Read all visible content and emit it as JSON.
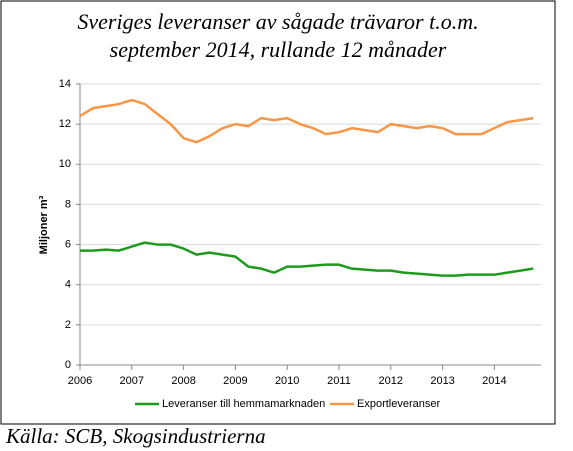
{
  "chart_data": {
    "type": "line",
    "title": [
      "Sveriges leveranser av sågade trävaror t.o.m.",
      "september 2014, rullande 12 månader"
    ],
    "y_label": "Miljoner m³",
    "source": "Källa: SCB, Skogsindustrierna",
    "x": [
      2006,
      2006.25,
      2006.5,
      2006.75,
      2007,
      2007.25,
      2007.5,
      2007.75,
      2008,
      2008.25,
      2008.5,
      2008.75,
      2009,
      2009.25,
      2009.5,
      2009.75,
      2010,
      2010.25,
      2010.5,
      2010.75,
      2011,
      2011.25,
      2011.5,
      2011.75,
      2012,
      2012.25,
      2012.5,
      2012.75,
      2013,
      2013.25,
      2013.5,
      2013.75,
      2014,
      2014.25,
      2014.5,
      2014.75
    ],
    "series": [
      {
        "name": "Leveranser till hemmamarknaden",
        "color": "#1e9a1e",
        "values": [
          5.7,
          5.7,
          5.75,
          5.7,
          5.9,
          6.1,
          6.0,
          6.0,
          5.8,
          5.5,
          5.6,
          5.5,
          5.4,
          4.9,
          4.8,
          4.6,
          4.9,
          4.9,
          4.95,
          5.0,
          5.0,
          4.8,
          4.75,
          4.7,
          4.7,
          4.6,
          4.55,
          4.5,
          4.45,
          4.45,
          4.5,
          4.5,
          4.5,
          4.6,
          4.7,
          4.8
        ]
      },
      {
        "name": "Exportleveranser",
        "color": "#f79646",
        "values": [
          12.4,
          12.8,
          12.9,
          13.0,
          13.2,
          13.0,
          12.5,
          12.0,
          11.3,
          11.1,
          11.4,
          11.8,
          12.0,
          11.9,
          12.3,
          12.2,
          12.3,
          12.0,
          11.8,
          11.5,
          11.6,
          11.8,
          11.7,
          11.6,
          12.0,
          11.9,
          11.8,
          11.9,
          11.8,
          11.5,
          11.5,
          11.5,
          11.8,
          12.1,
          12.2,
          12.3
        ]
      }
    ],
    "xlim": [
      2006,
      2014.9
    ],
    "xticks": [
      2006,
      2007,
      2008,
      2009,
      2010,
      2011,
      2012,
      2013,
      2014
    ],
    "ylim": [
      0,
      14
    ],
    "yticks": [
      0,
      2,
      4,
      6,
      8,
      10,
      12,
      14
    ],
    "grid": true,
    "legend": "bottom"
  }
}
